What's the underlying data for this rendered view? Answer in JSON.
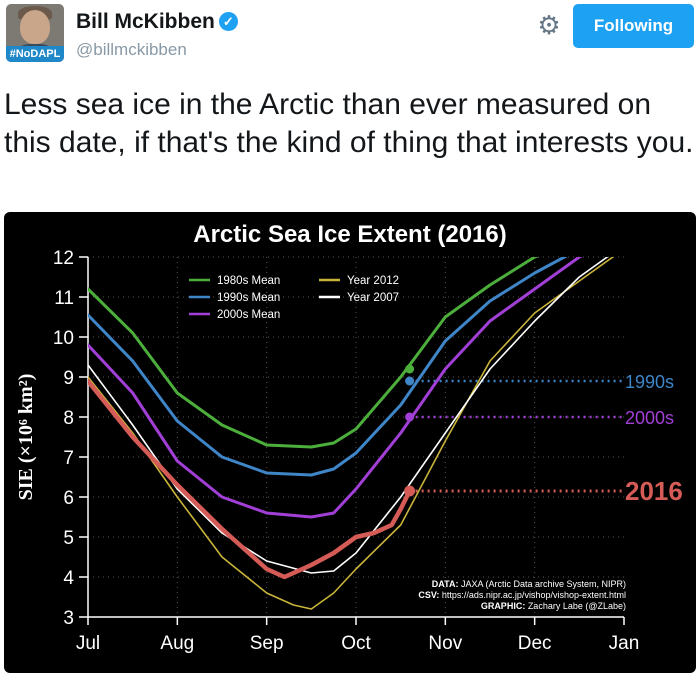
{
  "tweet": {
    "avatar_tag": "#NoDAPL",
    "author_name": "Bill McKibben",
    "handle": "@billmckibben",
    "follow_label": "Following",
    "text": "Less sea ice in the Arctic than ever measured on this date, if that's the kind of thing that interests you."
  },
  "icons": [
    "verified-badge-icon",
    "gear-icon"
  ],
  "chart_data": {
    "type": "line",
    "title": "Arctic Sea Ice Extent (2016)",
    "xlabel": "",
    "ylabel": "SIE (×10⁶ km²)",
    "x_ticks": [
      "Jul",
      "Aug",
      "Sep",
      "Oct",
      "Nov",
      "Dec",
      "Jan"
    ],
    "y_ticks": [
      "3",
      "4",
      "5",
      "6",
      "7",
      "8",
      "9",
      "10",
      "11",
      "12"
    ],
    "ylim": [
      3,
      12
    ],
    "x_unit": "months since Jul 1",
    "grid": true,
    "legend_placement": "top-left",
    "series": [
      {
        "name": "1980s Mean",
        "color": "#4caf3c",
        "width": 3,
        "x": [
          0,
          0.5,
          1,
          1.5,
          2,
          2.5,
          2.75,
          3,
          3.5,
          4,
          4.5,
          5,
          5.5
        ],
        "y": [
          11.2,
          10.1,
          8.6,
          7.8,
          7.3,
          7.25,
          7.35,
          7.7,
          9.0,
          10.5,
          11.3,
          12.0,
          12.4
        ]
      },
      {
        "name": "1990s Mean",
        "color": "#3f86c8",
        "width": 3,
        "x": [
          0,
          0.5,
          1,
          1.5,
          2,
          2.5,
          2.75,
          3,
          3.5,
          4,
          4.5,
          5,
          5.5,
          6
        ],
        "y": [
          10.55,
          9.4,
          7.9,
          7.0,
          6.6,
          6.55,
          6.7,
          7.1,
          8.3,
          9.9,
          10.9,
          11.6,
          12.2,
          12.6
        ]
      },
      {
        "name": "2000s Mean",
        "color": "#a23fd6",
        "width": 3,
        "x": [
          0,
          0.5,
          1,
          1.5,
          2,
          2.5,
          2.75,
          3,
          3.5,
          4,
          4.5,
          5,
          5.5,
          6
        ],
        "y": [
          9.8,
          8.6,
          6.9,
          6.0,
          5.6,
          5.5,
          5.6,
          6.2,
          7.6,
          9.2,
          10.4,
          11.2,
          12.0,
          12.5
        ]
      },
      {
        "name": "Year 2012",
        "color": "#c9b43a",
        "width": 1.6,
        "x": [
          0,
          0.5,
          1,
          1.5,
          2,
          2.3,
          2.5,
          2.75,
          3,
          3.5,
          4,
          4.5,
          5,
          5.5,
          6
        ],
        "y": [
          9.0,
          7.6,
          6.0,
          4.5,
          3.6,
          3.3,
          3.2,
          3.6,
          4.2,
          5.3,
          7.4,
          9.4,
          10.6,
          11.4,
          12.2
        ]
      },
      {
        "name": "Year 2007",
        "color": "#ffffff",
        "width": 1.6,
        "x": [
          0,
          0.5,
          1,
          1.5,
          2,
          2.5,
          2.75,
          3,
          3.5,
          4,
          4.5,
          5,
          5.5,
          6
        ],
        "y": [
          9.3,
          7.8,
          6.2,
          5.1,
          4.4,
          4.1,
          4.15,
          4.6,
          6.0,
          7.6,
          9.2,
          10.4,
          11.5,
          12.3
        ]
      },
      {
        "name": "2016",
        "color": "#d45b56",
        "width": 4.5,
        "x": [
          0,
          0.5,
          1,
          1.5,
          2,
          2.2,
          2.5,
          2.75,
          3,
          3.2,
          3.4,
          3.5,
          3.6
        ],
        "y": [
          8.9,
          7.5,
          6.3,
          5.2,
          4.2,
          4.0,
          4.3,
          4.6,
          5.0,
          5.1,
          5.3,
          5.7,
          6.15
        ]
      }
    ],
    "markers": [
      {
        "series": "1980s Mean",
        "x": 3.6,
        "y": 9.2,
        "color": "#4caf3c"
      },
      {
        "series": "1990s Mean",
        "x": 3.6,
        "y": 8.9,
        "color": "#3f86c8"
      },
      {
        "series": "2000s Mean",
        "x": 3.6,
        "y": 8.0,
        "color": "#a23fd6"
      },
      {
        "series": "2016",
        "x": 3.6,
        "y": 6.15,
        "color": "#d45b56"
      }
    ],
    "annotations": [
      {
        "text": "1990s",
        "y": 8.9,
        "color": "#3f86c8",
        "size": "medium"
      },
      {
        "text": "2000s",
        "y": 8.0,
        "color": "#a23fd6",
        "size": "medium"
      },
      {
        "text": "2016",
        "y": 6.15,
        "color": "#d45b56",
        "size": "large"
      }
    ],
    "credits": [
      {
        "label": "DATA:",
        "value": "JAXA (Arctic Data archive System, NIPR)"
      },
      {
        "label": "CSV:",
        "value": "https://ads.nipr.ac.jp/vishop/vishop-extent.html"
      },
      {
        "label": "GRAPHIC:",
        "value": "Zachary Labe (@ZLabe)"
      }
    ]
  }
}
